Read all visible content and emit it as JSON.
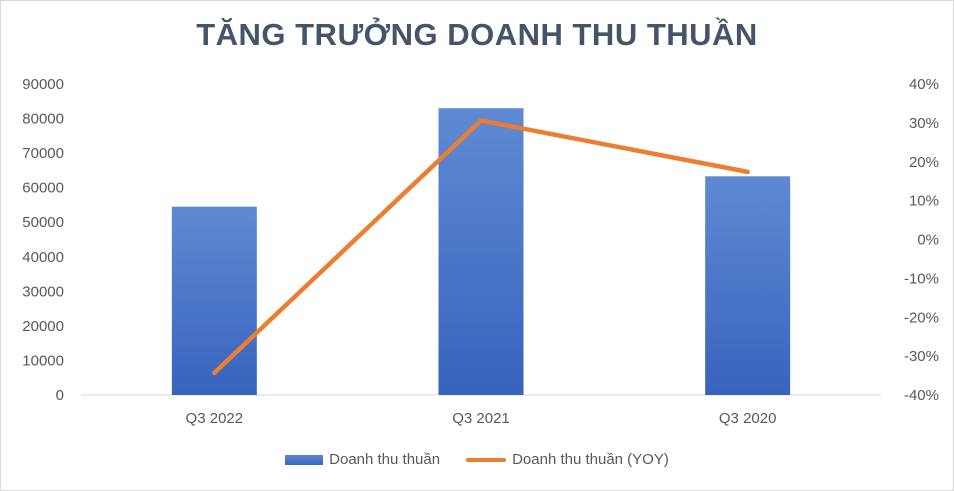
{
  "chart_data": {
    "type": "bar",
    "title": "TĂNG TRƯỞNG DOANH THU THUẦN",
    "categories": [
      "Q3 2022",
      "Q3 2021",
      "Q3 2020"
    ],
    "series": [
      {
        "name": "Doanh thu thuần",
        "type": "bar",
        "axis": "left",
        "values": [
          54500,
          83000,
          63300
        ]
      },
      {
        "name": "Doanh thu thuần (YOY)",
        "type": "line",
        "axis": "right",
        "values": [
          -0.343,
          0.306,
          0.174
        ]
      }
    ],
    "y_left": {
      "range": [
        0,
        90000
      ],
      "ticks": [
        "0",
        "10000",
        "20000",
        "30000",
        "40000",
        "50000",
        "60000",
        "70000",
        "80000",
        "90000"
      ]
    },
    "y_right": {
      "range": [
        -0.4,
        0.4
      ],
      "ticks": [
        "-40%",
        "-30%",
        "-20%",
        "-10%",
        "0%",
        "10%",
        "20%",
        "30%",
        "40%"
      ]
    },
    "grid": false,
    "legend": "bottom",
    "colors": {
      "bar": "#4472c4",
      "line": "#ed7d31",
      "title": "#44546a",
      "text": "#595959"
    }
  }
}
